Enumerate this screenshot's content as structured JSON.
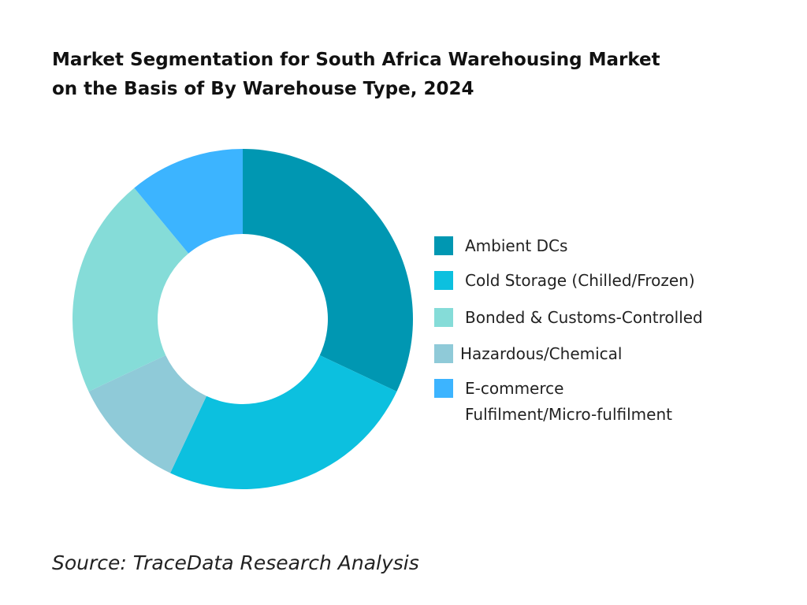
{
  "title": {
    "line1": "Market Segmentation for South Africa Warehousing Market",
    "line2": "on the Basis of By Warehouse Type, 2024"
  },
  "source": "Source: TraceData Research Analysis",
  "chart_data": {
    "type": "pie",
    "subtype": "donut",
    "title": "Market Segmentation for South Africa Warehousing Market on the Basis of By Warehouse Type, 2024",
    "legend_position": "right",
    "categories": [
      "Ambient DCs",
      "Cold Storage (Chilled/Frozen)",
      "Bonded & Customs-Controlled",
      "Hazardous/Chemical",
      "E-commerce Fulfilment/Micro-fulfilment"
    ],
    "legend_lines": [
      [
        "Ambient DCs"
      ],
      [
        "Cold Storage (Chilled/Frozen)"
      ],
      [
        "Bonded & Customs-Controlled"
      ],
      [
        "Hazardous/Chemical"
      ],
      [
        "E-commerce",
        "Fulfilment/Micro-fulfilment"
      ]
    ],
    "values": [
      32,
      25,
      21,
      11,
      11
    ],
    "slice_order": [
      0,
      1,
      3,
      2,
      4
    ],
    "colors": [
      "#0097B2",
      "#0CC0DF",
      "#85DCD8",
      "#8FCAD8",
      "#3CB4FF"
    ]
  }
}
